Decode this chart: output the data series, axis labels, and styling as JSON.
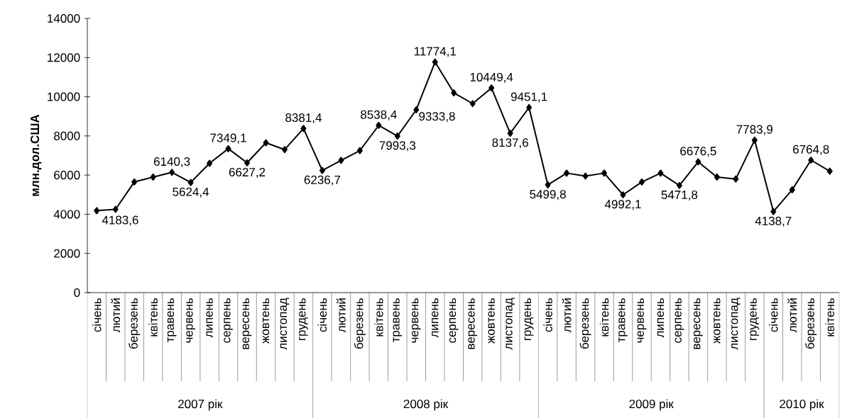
{
  "chart_data": {
    "type": "line",
    "ylabel": "млн.дол.США",
    "categories": [
      "січень",
      "лютий",
      "березень",
      "квітень",
      "травень",
      "червень",
      "липень",
      "серпень",
      "вересень",
      "жовтень",
      "листопад",
      "грудень",
      "січень",
      "лютий",
      "березень",
      "квітень",
      "травень",
      "червень",
      "липень",
      "серпень",
      "вересень",
      "жовтень",
      "листопад",
      "грудень",
      "січень",
      "лютий",
      "березень",
      "квітень",
      "травень",
      "червень",
      "липень",
      "серпень",
      "вересень",
      "жовтень",
      "листопад",
      "грудень",
      "січень",
      "лютий",
      "березень",
      "квітень"
    ],
    "values": [
      4183.6,
      4250,
      5650,
      5900,
      6140.3,
      5624.4,
      6600,
      7349.1,
      6627.2,
      7650,
      7300,
      8381.4,
      6236.7,
      6750,
      7250,
      8538.4,
      7993.3,
      9333.8,
      11774.1,
      10200,
      9650,
      10449.4,
      8137.6,
      9451.1,
      5499.8,
      6100,
      5950,
      6100,
      4992.1,
      5650,
      6100,
      5471.8,
      6676.5,
      5900,
      5800,
      7783.9,
      4138.7,
      5250,
      6764.8,
      6200
    ],
    "value_labels": [
      "4183,6",
      null,
      null,
      null,
      "6140,3",
      "5624,4",
      null,
      "7349,1",
      "6627,2",
      null,
      null,
      "8381,4",
      "6236,7",
      null,
      null,
      "8538,4",
      "7993,3",
      "9333,8",
      "11774,1",
      null,
      null,
      "10449,4",
      "8137,6",
      "9451,1",
      "5499,8",
      null,
      null,
      null,
      "4992,1",
      null,
      null,
      "5471,8",
      "6676,5",
      null,
      null,
      "7783,9",
      "4138,7",
      null,
      "6764,8",
      null
    ],
    "color": "#000000",
    "marker": "diamond",
    "line_style": "solid",
    "ylim": [
      0,
      14000
    ],
    "yticks": [
      0,
      2000,
      4000,
      6000,
      8000,
      10000,
      12000,
      14000
    ],
    "annotations": [
      "2007 рік",
      "2008 рік",
      "2009 рік",
      "2010 рік"
    ]
  }
}
